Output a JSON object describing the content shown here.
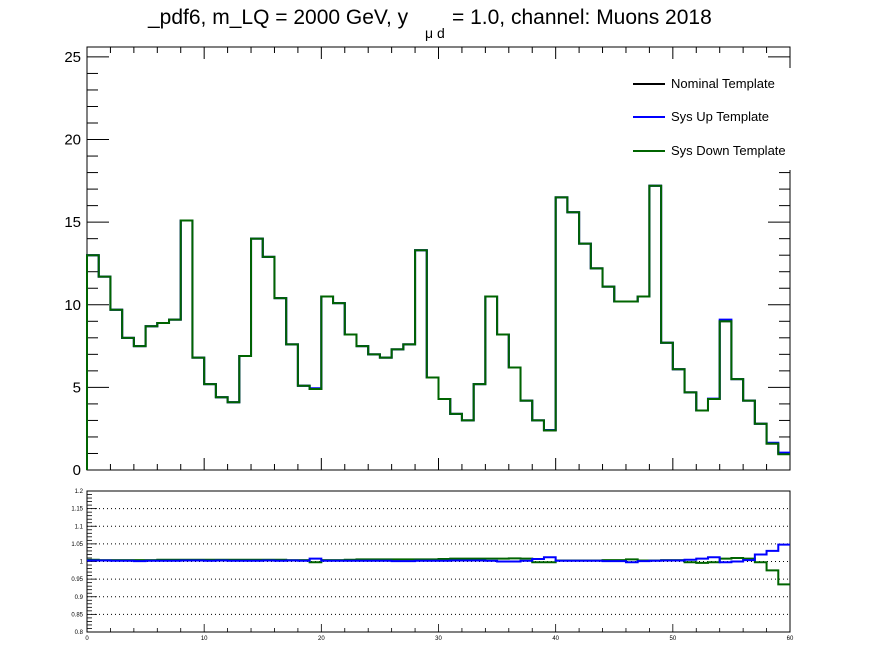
{
  "title": {
    "prefix": "_pdf6, m_LQ = 2000 GeV, y",
    "subscript": "μ d",
    "suffix": "= 1.0, channel: Muons 2018"
  },
  "chart_data": [
    {
      "type": "line",
      "panel": "main",
      "style": "step-histogram",
      "xlim": [
        0,
        60
      ],
      "ylim": [
        0,
        25.6
      ],
      "bin_width": 1,
      "y_ticks": [
        0,
        5,
        10,
        15,
        20,
        25
      ],
      "grid": false,
      "legend": "top-right",
      "colors": {
        "nominal": "#000000",
        "up": "#0000ff",
        "down": "#006400"
      },
      "series": [
        {
          "name": "Nominal Template",
          "color": "#000000",
          "values": [
            13.0,
            11.7,
            9.7,
            8.0,
            7.5,
            8.7,
            8.9,
            9.1,
            15.1,
            6.8,
            5.2,
            4.4,
            4.1,
            6.9,
            14.0,
            12.9,
            10.4,
            7.6,
            5.1,
            4.9,
            10.5,
            10.1,
            8.2,
            7.5,
            7.0,
            6.8,
            7.3,
            7.6,
            13.3,
            5.6,
            4.3,
            3.4,
            3.0,
            5.2,
            10.5,
            8.2,
            6.2,
            4.2,
            3.0,
            2.4,
            16.5,
            15.6,
            13.7,
            12.2,
            11.1,
            10.2,
            10.2,
            10.5,
            17.2,
            7.7,
            6.1,
            4.7,
            3.6,
            4.3,
            9.0,
            5.5,
            4.2,
            2.8,
            1.6,
            1.0
          ]
        },
        {
          "name": "Sys Up Template",
          "color": "#0000ff",
          "values": [
            13.0,
            11.7,
            9.7,
            8.0,
            7.5,
            8.7,
            8.9,
            9.1,
            15.1,
            6.8,
            5.2,
            4.4,
            4.1,
            6.9,
            14.0,
            12.9,
            10.4,
            7.6,
            5.1,
            4.95,
            10.5,
            10.1,
            8.2,
            7.5,
            7.0,
            6.8,
            7.3,
            7.6,
            13.3,
            5.6,
            4.3,
            3.4,
            3.0,
            5.2,
            10.5,
            8.2,
            6.2,
            4.2,
            3.0,
            2.42,
            16.5,
            15.6,
            13.7,
            12.2,
            11.1,
            10.2,
            10.2,
            10.5,
            17.2,
            7.7,
            6.1,
            4.7,
            3.6,
            4.32,
            9.1,
            5.5,
            4.2,
            2.8,
            1.65,
            1.05
          ]
        },
        {
          "name": "Sys Down Template",
          "color": "#006400",
          "values": [
            13.0,
            11.7,
            9.7,
            8.0,
            7.5,
            8.7,
            8.9,
            9.1,
            15.1,
            6.8,
            5.2,
            4.4,
            4.1,
            6.9,
            14.0,
            12.9,
            10.4,
            7.6,
            5.1,
            4.9,
            10.5,
            10.1,
            8.2,
            7.5,
            7.0,
            6.8,
            7.3,
            7.6,
            13.3,
            5.6,
            4.3,
            3.4,
            3.0,
            5.2,
            10.5,
            8.2,
            6.2,
            4.2,
            3.0,
            2.4,
            16.5,
            15.6,
            13.7,
            12.2,
            11.1,
            10.2,
            10.2,
            10.5,
            17.2,
            7.7,
            6.1,
            4.7,
            3.6,
            4.3,
            9.0,
            5.5,
            4.2,
            2.8,
            1.6,
            0.95
          ]
        }
      ]
    },
    {
      "type": "line",
      "panel": "ratio",
      "style": "step-histogram",
      "xlim": [
        0,
        60
      ],
      "ylim": [
        0.8,
        1.2
      ],
      "bin_width": 1,
      "x_ticks": [
        0,
        10,
        20,
        30,
        40,
        50,
        60
      ],
      "y_ticks": [
        0.8,
        0.85,
        0.9,
        0.95,
        1,
        1.05,
        1.1,
        1.15,
        1.2
      ],
      "grid": true,
      "series": [
        {
          "name": "Sys Up Template",
          "color": "#0000ff",
          "values": [
            1.003,
            1.003,
            1.002,
            1.002,
            1.001,
            1.002,
            1.002,
            1.002,
            1.003,
            1.003,
            1.002,
            1.003,
            1.002,
            1.002,
            1.002,
            1.003,
            1.002,
            1.003,
            1.002,
            1.008,
            1.002,
            1.002,
            1.002,
            1.002,
            1.002,
            1.002,
            1.001,
            1.001,
            1.002,
            1.002,
            1.002,
            1.003,
            1.003,
            1.003,
            1.002,
            1.0,
            1.0,
            1.002,
            1.007,
            1.012,
            1.002,
            1.002,
            1.002,
            1.002,
            1.001,
            1.001,
            0.998,
            1.001,
            1.002,
            1.003,
            1.003,
            1.005,
            1.008,
            1.012,
            0.998,
            1.0,
            1.004,
            1.02,
            1.03,
            1.048
          ]
        },
        {
          "name": "Sys Down Template",
          "color": "#006400",
          "values": [
            1.005,
            1.004,
            1.004,
            1.004,
            1.004,
            1.004,
            1.005,
            1.005,
            1.005,
            1.005,
            1.005,
            1.005,
            1.005,
            1.005,
            1.005,
            1.005,
            1.005,
            1.004,
            1.004,
            0.998,
            1.004,
            1.004,
            1.005,
            1.006,
            1.006,
            1.006,
            1.006,
            1.006,
            1.006,
            1.006,
            1.007,
            1.008,
            1.008,
            1.008,
            1.008,
            1.008,
            1.009,
            1.008,
            0.998,
            0.998,
            1.003,
            1.003,
            1.003,
            1.003,
            1.004,
            1.004,
            1.006,
            1.003,
            1.003,
            1.004,
            1.004,
            0.998,
            0.996,
            0.998,
            1.008,
            1.01,
            1.008,
            0.998,
            0.975,
            0.935
          ]
        }
      ]
    }
  ]
}
